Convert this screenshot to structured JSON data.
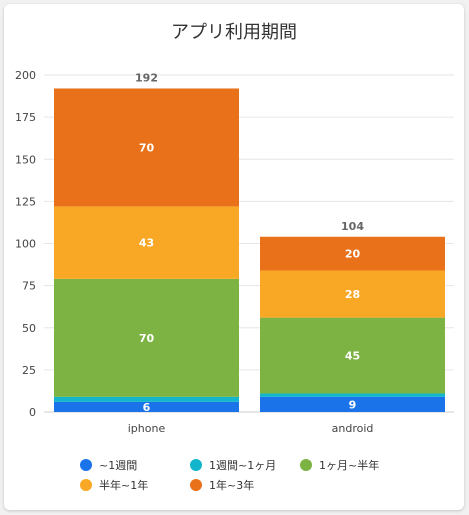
{
  "chart_data": {
    "type": "bar",
    "stacked": true,
    "title": "アプリ利用期間",
    "categories": [
      "iphone",
      "android"
    ],
    "series": [
      {
        "name": "~1週間",
        "color": "#1a73e8",
        "values": [
          6,
          9
        ],
        "show_labels": true
      },
      {
        "name": "1週間~1ヶ月",
        "color": "#12b5cb",
        "values": [
          3,
          2
        ],
        "show_labels": false
      },
      {
        "name": "1ヶ月~半年",
        "color": "#7cb342",
        "values": [
          70,
          45
        ],
        "show_labels": true
      },
      {
        "name": "半年~1年",
        "color": "#f9a825",
        "values": [
          43,
          28
        ],
        "show_labels": true
      },
      {
        "name": "1年~3年",
        "color": "#e8711a",
        "values": [
          70,
          20
        ],
        "show_labels": true
      }
    ],
    "totals": [
      192,
      104
    ],
    "yticks": [
      "0",
      "25",
      "50",
      "75",
      "100",
      "125",
      "150",
      "175",
      "200"
    ],
    "ylim": [
      0,
      200
    ],
    "grid": true,
    "legend_position": "bottom"
  }
}
